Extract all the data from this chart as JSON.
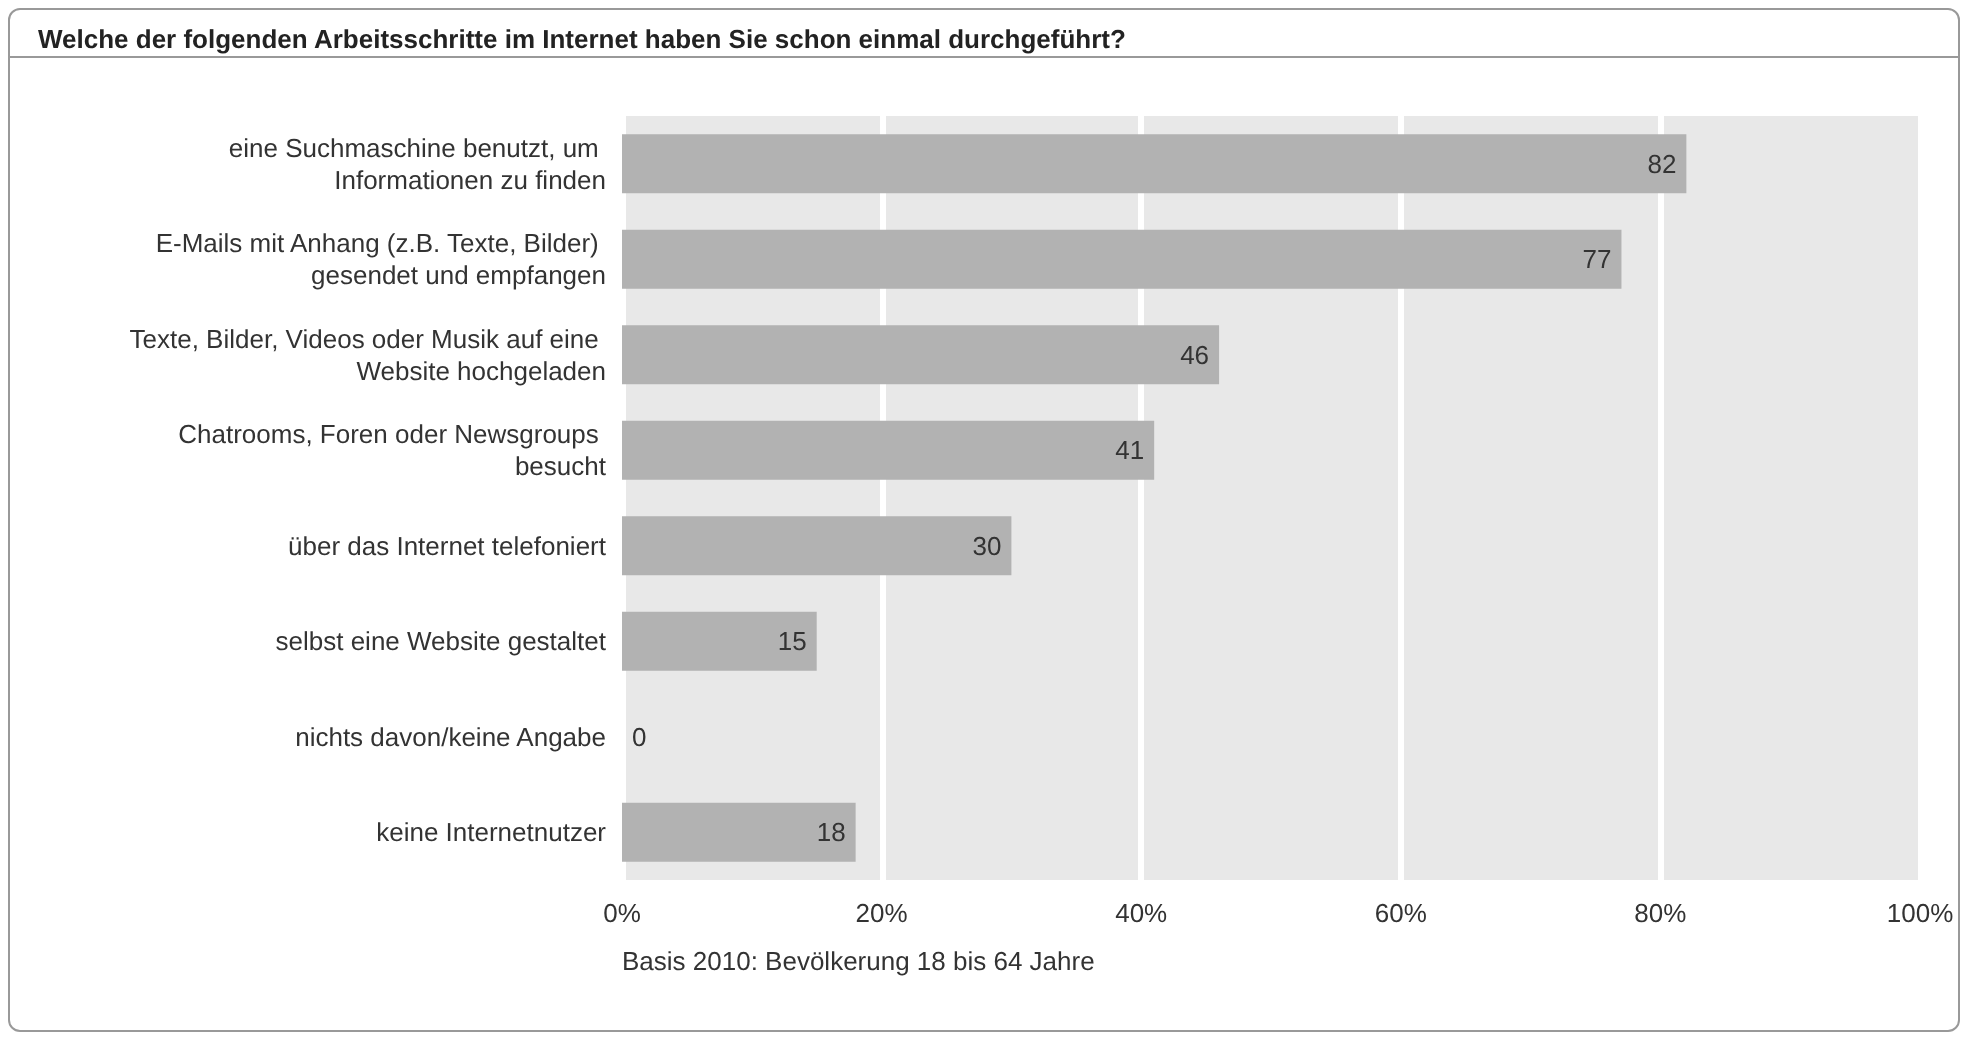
{
  "chart_data": {
    "type": "bar",
    "orientation": "horizontal",
    "title": "Welche der folgenden Arbeitsschritte im Internet haben Sie schon einmal durchgeführt?",
    "categories": [
      "eine Suchmaschine benutzt, um Informationen zu finden",
      "E-Mails mit Anhang (z.B. Texte, Bilder) gesendet und empfangen",
      "Texte, Bilder, Videos oder Musik auf eine Website hochgeladen",
      "Chatrooms, Foren oder Newsgroups besucht",
      "über das Internet telefoniert",
      "selbst eine Website gestaltet",
      "nichts davon/keine Angabe",
      "keine Internetnutzer"
    ],
    "values": [
      82,
      77,
      46,
      41,
      30,
      15,
      0,
      18
    ],
    "color": "#b2b2b2",
    "xlim": [
      0,
      100
    ],
    "xticks": [
      {
        "value": 0,
        "label": "0%"
      },
      {
        "value": 20,
        "label": "20%"
      },
      {
        "value": 40,
        "label": "40%"
      },
      {
        "value": 60,
        "label": "60%"
      },
      {
        "value": 80,
        "label": "80%"
      },
      {
        "value": 100,
        "label": "100%"
      }
    ],
    "grid": "x",
    "data_labels": true,
    "annotations": [
      "Basis 2010: Bevölkerung 18 bis 64 Jahre"
    ]
  }
}
